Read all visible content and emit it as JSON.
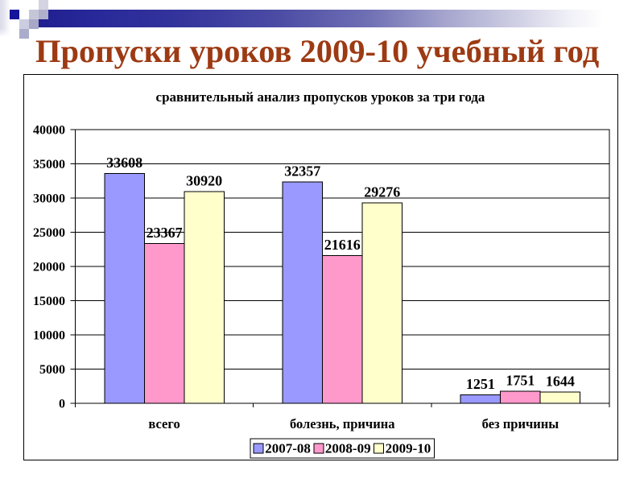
{
  "slide": {
    "title": "Пропуски уроков 2009-10 учебный год",
    "title_color": "#9d3a13",
    "accent_navy": "#202090"
  },
  "chart_data": {
    "type": "bar",
    "title": "сравнительный анализ пропусков уроков за три года",
    "categories": [
      "всего",
      "болезнь, причина",
      "без причины"
    ],
    "series": [
      {
        "name": "2007-08",
        "color": "#9999ff",
        "values": [
          33608,
          32357,
          1251
        ]
      },
      {
        "name": "2008-09",
        "color": "#ff99cc",
        "values": [
          23367,
          21616,
          1751
        ]
      },
      {
        "name": "2009-10",
        "color": "#ffffcc",
        "values": [
          30920,
          29276,
          1644
        ]
      }
    ],
    "ylim": [
      0,
      40000
    ],
    "ytick_step": 5000,
    "grid": true,
    "legend_position": "bottom",
    "value_labels": true,
    "bar_border_color": "#000000",
    "background": "#ffffff"
  }
}
